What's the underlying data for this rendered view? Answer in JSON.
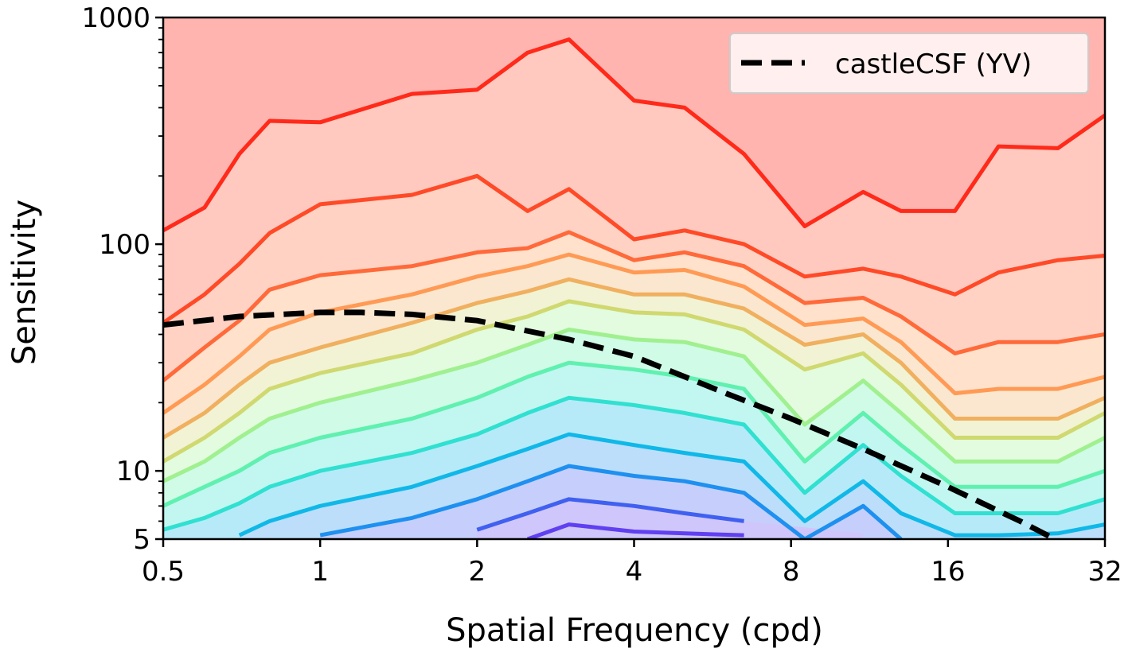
{
  "chart_data": {
    "type": "contour",
    "xlabel": "Spatial Frequency (cpd)",
    "ylabel": "Sensitivity",
    "xscale": "log",
    "yscale": "log",
    "xlim": [
      0.5,
      32
    ],
    "ylim": [
      5,
      1000
    ],
    "xticks": [
      0.5,
      1,
      2,
      4,
      8,
      16,
      32
    ],
    "yticks": [
      5,
      10,
      100,
      1000
    ],
    "yminorticks": [
      6,
      7,
      8,
      9,
      20,
      30,
      40,
      50,
      60,
      70,
      80,
      90,
      200,
      300,
      400,
      500,
      600,
      700,
      800,
      900
    ],
    "legend": "upper right",
    "x": [
      0.5,
      0.6,
      0.7,
      0.8,
      1,
      1.5,
      2,
      2.5,
      3,
      4,
      5,
      6.5,
      8.5,
      11,
      13,
      16.5,
      20,
      26,
      32
    ],
    "contours": [
      {
        "color": "#ff2a1a",
        "values": [
          115,
          145,
          250,
          350,
          345,
          460,
          480,
          700,
          800,
          430,
          400,
          250,
          120,
          170,
          140,
          140,
          270,
          265,
          370
        ]
      },
      {
        "color": "#ff4a28",
        "values": [
          45,
          60,
          82,
          112,
          150,
          165,
          200,
          140,
          175,
          105,
          115,
          100,
          72,
          78,
          72,
          60,
          75,
          85,
          89
        ]
      },
      {
        "color": "#ff6a3a",
        "values": [
          25,
          35,
          46,
          63,
          73,
          80,
          92,
          96,
          113,
          85,
          92,
          80,
          55,
          58,
          48,
          33,
          37,
          37,
          40
        ]
      },
      {
        "color": "#ff9a55",
        "values": [
          18,
          24,
          32,
          42,
          50,
          60,
          72,
          80,
          90,
          75,
          77,
          65,
          44,
          47,
          37,
          22,
          23,
          23,
          26
        ]
      },
      {
        "color": "#f0b060",
        "values": [
          14,
          18,
          24,
          30,
          35,
          45,
          55,
          62,
          70,
          60,
          60,
          52,
          36,
          40,
          30,
          17,
          17,
          17,
          21
        ]
      },
      {
        "color": "#d0d870",
        "values": [
          11,
          14,
          18,
          23,
          27,
          33,
          42,
          48,
          56,
          50,
          49,
          42,
          28,
          33,
          24,
          14,
          14,
          14,
          18
        ]
      },
      {
        "color": "#a0f090",
        "values": [
          9,
          11,
          14,
          17,
          20,
          25,
          30,
          36,
          42,
          38,
          37,
          32,
          16,
          25,
          18,
          11,
          11,
          11,
          14
        ]
      },
      {
        "color": "#60f0b0",
        "values": [
          7,
          8.5,
          10,
          12,
          14,
          17,
          21,
          26,
          30,
          28,
          26,
          23,
          11,
          18,
          13,
          8.5,
          8.5,
          8.5,
          10
        ]
      },
      {
        "color": "#30e0d0",
        "values": [
          5.5,
          6.2,
          7.2,
          8.5,
          10,
          12,
          14.5,
          18,
          21,
          19.5,
          18,
          16,
          8,
          13,
          9.5,
          6.5,
          6.5,
          6.5,
          7.5
        ]
      },
      {
        "color": "#10b8e8",
        "values": [
          null,
          null,
          5.2,
          6,
          7,
          8.5,
          10.5,
          12.5,
          14.5,
          13,
          12,
          11,
          6,
          9,
          6.5,
          5.2,
          5.2,
          5.3,
          5.8
        ]
      },
      {
        "color": "#1e90f0",
        "values": [
          null,
          null,
          null,
          null,
          5.2,
          6.2,
          7.5,
          9,
          10.5,
          9.5,
          9,
          8,
          5,
          7,
          5,
          null,
          null,
          null,
          null
        ]
      },
      {
        "color": "#4060f0",
        "values": [
          null,
          null,
          null,
          null,
          null,
          null,
          5.5,
          6.5,
          7.5,
          7,
          6.5,
          6,
          null,
          5.3,
          null,
          null,
          null,
          null,
          null
        ]
      },
      {
        "color": "#6040f0",
        "values": [
          null,
          null,
          null,
          null,
          null,
          null,
          null,
          5,
          5.8,
          5.4,
          5.3,
          5.2,
          null,
          null,
          null,
          null,
          null,
          null,
          null
        ]
      }
    ],
    "series": [
      {
        "name": "castleCSF (YV)",
        "color": "#000000",
        "style": "dashed",
        "x": [
          0.5,
          0.7,
          1,
          1.2,
          1.5,
          2,
          3,
          4,
          6,
          8,
          11,
          16,
          22,
          28
        ],
        "values": [
          44,
          48,
          50,
          50,
          49,
          46,
          38,
          32,
          22,
          17,
          12.5,
          8.5,
          6,
          4.5
        ]
      }
    ]
  }
}
